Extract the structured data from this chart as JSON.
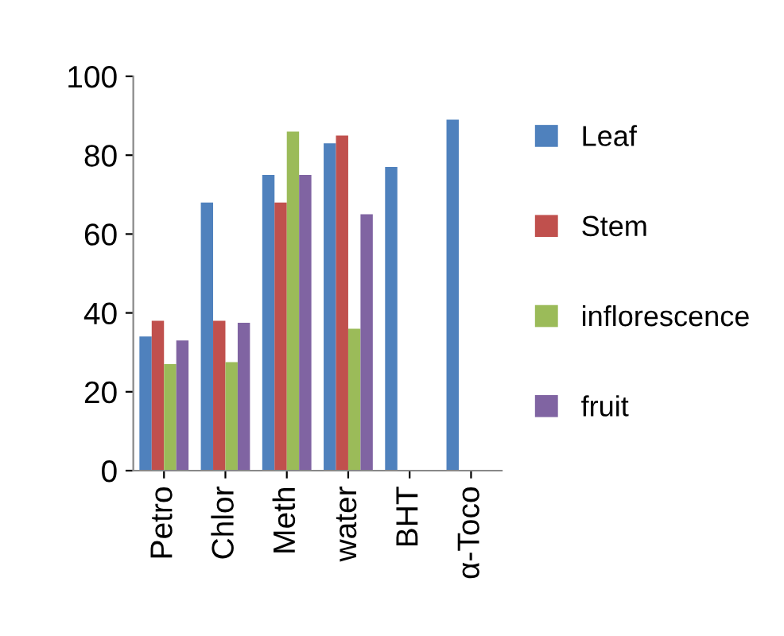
{
  "chart_data": {
    "type": "bar",
    "categories": [
      "Petro",
      "Chlor",
      "Meth",
      "water",
      "BHT",
      "α-Toco"
    ],
    "series": [
      {
        "name": "Leaf",
        "color": "#4f81bd",
        "values": [
          34,
          68,
          75,
          83,
          77,
          89
        ]
      },
      {
        "name": "Stem",
        "color": "#c0504d",
        "values": [
          38,
          38,
          68,
          85,
          null,
          null
        ]
      },
      {
        "name": "inflorescence",
        "color": "#9bbb59",
        "values": [
          27,
          27.5,
          86,
          36,
          null,
          null
        ]
      },
      {
        "name": "fruit",
        "color": "#8064a2",
        "values": [
          33,
          37.5,
          75,
          65,
          null,
          null
        ]
      }
    ],
    "ylim": [
      0,
      100
    ],
    "yticks": [
      0,
      20,
      40,
      60,
      80,
      100
    ],
    "grid": false,
    "legend": "right"
  }
}
